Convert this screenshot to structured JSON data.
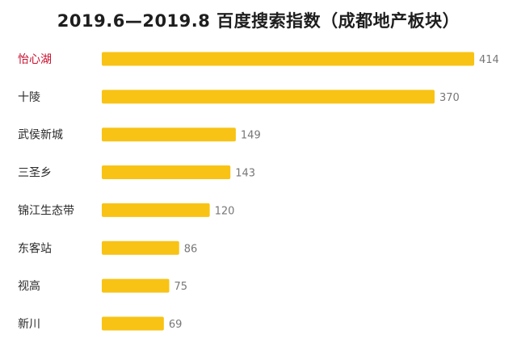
{
  "chart_data": {
    "type": "bar",
    "orientation": "horizontal",
    "title": "2019.6—2019.8 百度搜索指数（成都地产板块）",
    "categories": [
      "怡心湖",
      "十陵",
      "武侯新城",
      "三圣乡",
      "锦江生态带",
      "东客站",
      "视高",
      "新川"
    ],
    "values": [
      414,
      370,
      149,
      143,
      120,
      86,
      75,
      69
    ],
    "highlight_index": 0,
    "xlim": [
      0,
      414
    ],
    "grid": false,
    "legend": "none"
  },
  "colors": {
    "bar": "#f8c315",
    "label": "#2a2a2a",
    "highlight_label": "#c8102e",
    "value": "#777777",
    "title": "#1e1e1e"
  }
}
